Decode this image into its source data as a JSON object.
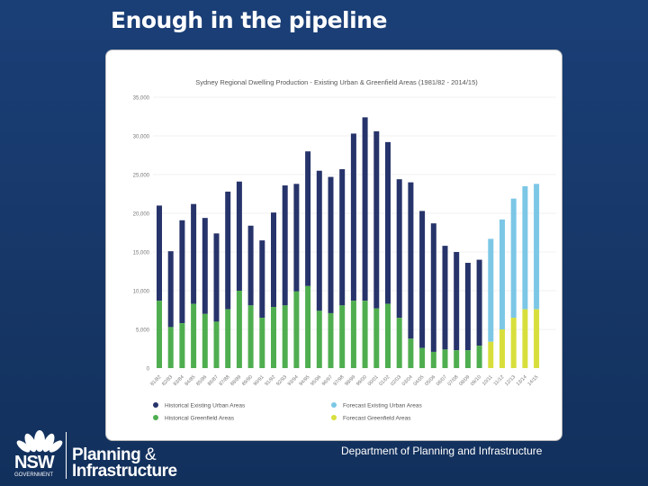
{
  "slide": {
    "title": "Enough in the pipeline",
    "footer": "Department of Planning and Infrastructure",
    "logo": {
      "nsw": "NSW",
      "government": "GOVERNMENT",
      "line1": "Planning",
      "amp": "&",
      "line2": "Infrastructure"
    }
  },
  "colors": {
    "background": "#163666",
    "hist_urban": "#27346b",
    "hist_greenfield": "#4fae4f",
    "fc_urban": "#7cc7e6",
    "fc_greenfield": "#d8df3c"
  },
  "chart_data": {
    "type": "bar",
    "stacked": true,
    "title": "Sydney Regional Dwelling Production - Existing Urban & Greenfield Areas (1981/82 - 2014/15)",
    "ylim": [
      0,
      35000
    ],
    "yticks": [
      "0",
      "5,000",
      "10,000",
      "15,000",
      "20,000",
      "25,000",
      "30,000",
      "35,000"
    ],
    "grid": true,
    "legend_position": "bottom",
    "categories": [
      "81/82",
      "82/83",
      "83/84",
      "84/85",
      "85/86",
      "86/87",
      "87/88",
      "88/89",
      "89/90",
      "90/91",
      "91/92",
      "92/93",
      "93/94",
      "94/95",
      "95/96",
      "96/97",
      "97/98",
      "98/99",
      "99/00",
      "00/01",
      "01/02",
      "02/03",
      "03/04",
      "04/05",
      "05/06",
      "06/07",
      "07/08",
      "08/09",
      "09/10",
      "10/11",
      "11/12",
      "12/13",
      "13/14",
      "14/15"
    ],
    "forecast_from_index": 29,
    "totals": [
      21000,
      15100,
      19100,
      21200,
      19400,
      17400,
      22800,
      24100,
      18400,
      16500,
      20100,
      23600,
      23800,
      28000,
      25500,
      24700,
      25700,
      30300,
      32400,
      30600,
      29200,
      24400,
      24000,
      20300,
      18700,
      15800,
      15000,
      13600,
      14000,
      16700,
      19200,
      21900,
      23500,
      23800
    ],
    "greenfield": [
      8700,
      5300,
      5800,
      8300,
      7000,
      6000,
      7600,
      10000,
      8100,
      6500,
      7900,
      8100,
      9900,
      10600,
      7400,
      7100,
      8100,
      8700,
      8700,
      7700,
      8300,
      6500,
      3800,
      2600,
      2100,
      2400,
      2300,
      2300,
      2900,
      3400,
      5000,
      6500,
      7600,
      7600
    ],
    "legend": [
      {
        "label": "Historical Existing Urban Areas",
        "color": "#27346b"
      },
      {
        "label": "Forecast Existing Urban Areas",
        "color": "#7cc7e6"
      },
      {
        "label": "Historical Greenfield Areas",
        "color": "#4fae4f"
      },
      {
        "label": "Forecast Greenfield Areas",
        "color": "#d8df3c"
      }
    ]
  }
}
